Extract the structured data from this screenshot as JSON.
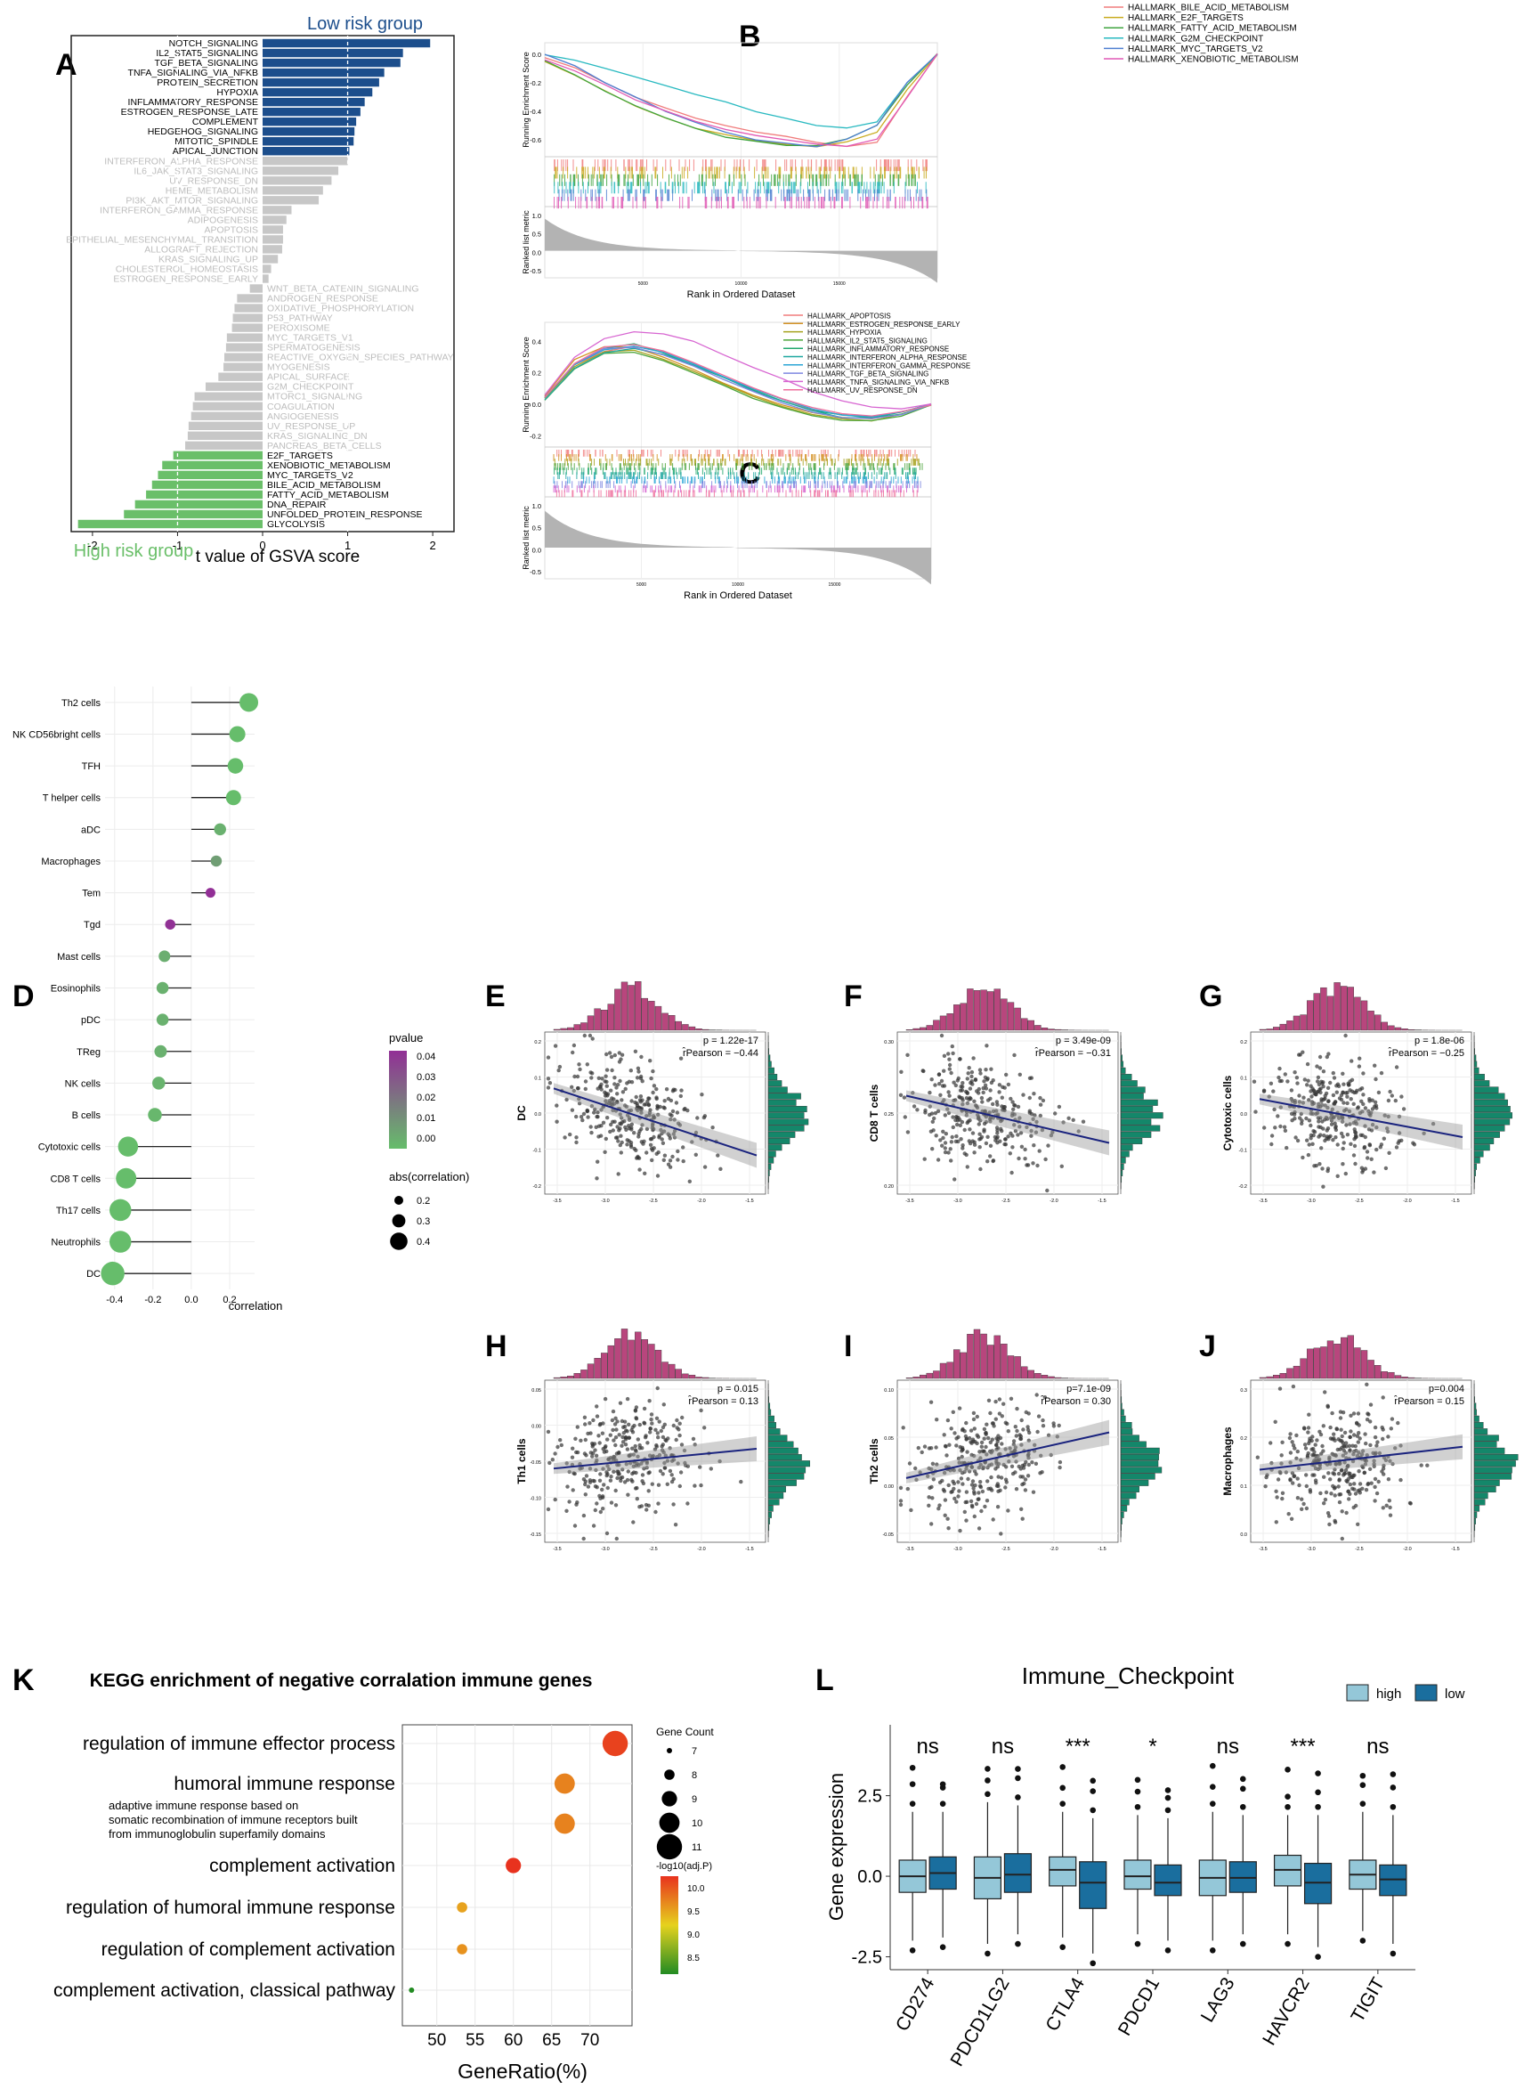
{
  "panels": {
    "A": "A",
    "B": "B",
    "C": "C",
    "D": "D",
    "E": "E",
    "F": "F",
    "G": "G",
    "H": "H",
    "I": "I",
    "J": "J",
    "K": "K",
    "L": "L"
  },
  "colors": {
    "low": "#1c4e8c",
    "high": "#6abf69",
    "grey": "#c7c7c7",
    "greyText": "#bdbdbd",
    "magenta": "#b8467d",
    "teal": "#14876a",
    "lightblue": "#94c7d8",
    "darkblue": "#1a6e9e"
  },
  "chart_data": [
    {
      "type": "bar",
      "panel": "A",
      "title_low": "Low risk group",
      "title_high": "High risk group",
      "xlabel": "t value of GSVA score",
      "xlim": [
        -2.25,
        2.25
      ],
      "xticks": [
        "-2",
        "-1",
        "0",
        "1",
        "2"
      ],
      "categories": [
        "NOTCH_SIGNALING",
        "IL2_STAT5_SIGNALING",
        "TGF_BETA_SIGNALING",
        "TNFA_SIGNALING_VIA_NFKB",
        "PROTEIN_SECRETION",
        "HYPOXIA",
        "INFLAMMATORY_RESPONSE",
        "ESTROGEN_RESPONSE_LATE",
        "COMPLEMENT",
        "HEDGEHOG_SIGNALING",
        "MITOTIC_SPINDLE",
        "APICAL_JUNCTION",
        "INTERFERON_ALPHA_RESPONSE",
        "IL6_JAK_STAT3_SIGNALING",
        "UV_RESPONSE_DN",
        "HEME_METABOLISM",
        "PI3K_AKT_MTOR_SIGNALING",
        "INTERFERON_GAMMA_RESPONSE",
        "ADIPOGENESIS",
        "APOPTOSIS",
        "EPITHELIAL_MESENCHYMAL_TRANSITION",
        "ALLOGRAFT_REJECTION",
        "KRAS_SIGNALING_UP",
        "CHOLESTEROL_HOMEOSTASIS",
        "ESTROGEN_RESPONSE_EARLY",
        "WNT_BETA_CATENIN_SIGNALING",
        "ANDROGEN_RESPONSE",
        "OXIDATIVE_PHOSPHORYLATION",
        "P53_PATHWAY",
        "PEROXISOME",
        "MYC_TARGETS_V1",
        "SPERMATOGENESIS",
        "REACTIVE_OXYGEN_SPECIES_PATHWAY",
        "MYOGENESIS",
        "APICAL_SURFACE",
        "G2M_CHECKPOINT",
        "MTORC1_SIGNALING",
        "COAGULATION",
        "ANGIOGENESIS",
        "UV_RESPONSE_UP",
        "KRAS_SIGNALING_DN",
        "PANCREAS_BETA_CELLS",
        "E2F_TARGETS",
        "XENOBIOTIC_METABOLISM",
        "MYC_TARGETS_V2",
        "BILE_ACID_METABOLISM",
        "FATTY_ACID_METABOLISM",
        "DNA_REPAIR",
        "UNFOLDED_PROTEIN_RESPONSE",
        "GLYCOLYSIS"
      ],
      "values": [
        1.97,
        1.65,
        1.62,
        1.43,
        1.37,
        1.29,
        1.2,
        1.15,
        1.1,
        1.08,
        1.07,
        1.02,
        1.0,
        0.89,
        0.81,
        0.71,
        0.66,
        0.34,
        0.28,
        0.24,
        0.24,
        0.23,
        0.18,
        0.1,
        0.07,
        -0.15,
        -0.3,
        -0.33,
        -0.35,
        -0.36,
        -0.42,
        -0.43,
        -0.45,
        -0.46,
        -0.52,
        -0.67,
        -0.8,
        -0.82,
        -0.84,
        -0.87,
        -0.88,
        -0.91,
        -1.05,
        -1.18,
        -1.23,
        -1.3,
        -1.37,
        -1.5,
        -1.63,
        -2.17
      ],
      "group": [
        "low",
        "low",
        "low",
        "low",
        "low",
        "low",
        "low",
        "low",
        "low",
        "low",
        "low",
        "low",
        "ns",
        "ns",
        "ns",
        "ns",
        "ns",
        "ns",
        "ns",
        "ns",
        "ns",
        "ns",
        "ns",
        "ns",
        "ns",
        "ns",
        "ns",
        "ns",
        "ns",
        "ns",
        "ns",
        "ns",
        "ns",
        "ns",
        "ns",
        "ns",
        "ns",
        "ns",
        "ns",
        "ns",
        "ns",
        "ns",
        "high",
        "high",
        "high",
        "high",
        "high",
        "high",
        "high",
        "high"
      ]
    },
    {
      "type": "line",
      "panel": "B",
      "ylabel": "Running Enrichment Score",
      "ylabel2": "Ranked list metric",
      "xlabel": "Rank in Ordered Dataset",
      "yticks": [
        "0.0",
        "-0.2",
        "-0.4",
        "-0.6"
      ],
      "yticks2": [
        "1.0",
        "0.5",
        "0.0",
        "-0.5"
      ],
      "xticks": [
        "5000",
        "10000",
        "15000"
      ],
      "series": [
        {
          "name": "HALLMARK_BILE_ACID_METABOLISM",
          "color": "#f07b7b",
          "values": [
            -0.02,
            -0.1,
            -0.2,
            -0.3,
            -0.38,
            -0.45,
            -0.5,
            -0.55,
            -0.58,
            -0.62,
            -0.65,
            -0.62,
            -0.3,
            0.0
          ]
        },
        {
          "name": "HALLMARK_E2F_TARGETS",
          "color": "#c9ab1f",
          "values": [
            -0.05,
            -0.15,
            -0.26,
            -0.36,
            -0.45,
            -0.52,
            -0.57,
            -0.61,
            -0.63,
            -0.65,
            -0.62,
            -0.55,
            -0.25,
            0.0
          ]
        },
        {
          "name": "HALLMARK_FATTY_ACID_METABOLISM",
          "color": "#3fa43f",
          "values": [
            -0.05,
            -0.15,
            -0.26,
            -0.36,
            -0.45,
            -0.52,
            -0.58,
            -0.61,
            -0.64,
            -0.64,
            -0.6,
            -0.5,
            -0.22,
            0.0
          ]
        },
        {
          "name": "HALLMARK_G2M_CHECKPOINT",
          "color": "#28b9c0",
          "values": [
            0.0,
            -0.04,
            -0.1,
            -0.16,
            -0.22,
            -0.28,
            -0.34,
            -0.4,
            -0.45,
            -0.5,
            -0.52,
            -0.48,
            -0.2,
            0.0
          ]
        },
        {
          "name": "HALLMARK_MYC_TARGETS_V2",
          "color": "#4f7fd1",
          "values": [
            0.0,
            -0.08,
            -0.2,
            -0.3,
            -0.4,
            -0.48,
            -0.55,
            -0.6,
            -0.63,
            -0.65,
            -0.6,
            -0.5,
            -0.2,
            0.0
          ]
        },
        {
          "name": "HALLMARK_XENOBIOTIC_METABOLISM",
          "color": "#e159b5",
          "values": [
            -0.04,
            -0.12,
            -0.22,
            -0.32,
            -0.4,
            -0.47,
            -0.53,
            -0.57,
            -0.6,
            -0.63,
            -0.65,
            -0.6,
            -0.3,
            0.0
          ]
        }
      ]
    },
    {
      "type": "line",
      "panel": "C",
      "ylabel": "Running Enrichment Score",
      "ylabel2": "Ranked list metric",
      "xlabel": "Rank in Ordered Dataset",
      "yticks": [
        "0.4",
        "0.2",
        "0.0",
        "-0.2"
      ],
      "yticks2": [
        "1.0",
        "0.5",
        "0.0",
        "-0.5"
      ],
      "xticks": [
        "5000",
        "10000",
        "15000"
      ],
      "series": [
        {
          "name": "HALLMARK_APOPTOSIS",
          "color": "#f07b7b",
          "values": [
            0.05,
            0.25,
            0.34,
            0.37,
            0.33,
            0.26,
            0.18,
            0.1,
            0.03,
            -0.03,
            -0.07,
            -0.08,
            -0.05,
            0.0
          ]
        },
        {
          "name": "HALLMARK_ESTROGEN_RESPONSE_EARLY",
          "color": "#d49225",
          "values": [
            0.05,
            0.28,
            0.37,
            0.36,
            0.3,
            0.22,
            0.14,
            0.06,
            0.0,
            -0.05,
            -0.08,
            -0.09,
            -0.06,
            0.0
          ]
        },
        {
          "name": "HALLMARK_HYPOXIA",
          "color": "#a6a21e",
          "values": [
            0.04,
            0.24,
            0.33,
            0.34,
            0.29,
            0.21,
            0.13,
            0.05,
            -0.01,
            -0.06,
            -0.09,
            -0.1,
            -0.06,
            0.0
          ]
        },
        {
          "name": "HALLMARK_IL2_STAT5_SIGNALING",
          "color": "#4ca43a",
          "values": [
            0.03,
            0.22,
            0.32,
            0.33,
            0.28,
            0.2,
            0.12,
            0.04,
            -0.02,
            -0.07,
            -0.1,
            -0.1,
            -0.07,
            0.0
          ]
        },
        {
          "name": "HALLMARK_INFLAMMATORY_RESPONSE",
          "color": "#23a86e",
          "values": [
            0.04,
            0.25,
            0.36,
            0.38,
            0.33,
            0.25,
            0.17,
            0.09,
            0.02,
            -0.04,
            -0.07,
            -0.08,
            -0.06,
            0.0
          ]
        },
        {
          "name": "HALLMARK_INTERFERON_ALPHA_RESPONSE",
          "color": "#1fa7a0",
          "values": [
            0.03,
            0.23,
            0.33,
            0.36,
            0.32,
            0.25,
            0.17,
            0.09,
            0.02,
            -0.04,
            -0.08,
            -0.09,
            -0.05,
            0.0
          ]
        },
        {
          "name": "HALLMARK_INTERFERON_GAMMA_RESPONSE",
          "color": "#2aa5d6",
          "values": [
            0.04,
            0.25,
            0.35,
            0.37,
            0.33,
            0.26,
            0.18,
            0.1,
            0.03,
            -0.03,
            -0.07,
            -0.08,
            -0.05,
            0.0
          ]
        },
        {
          "name": "HALLMARK_TGF_BETA_SIGNALING",
          "color": "#7d86e0",
          "values": [
            0.05,
            0.26,
            0.35,
            0.36,
            0.31,
            0.24,
            0.16,
            0.08,
            0.01,
            -0.05,
            -0.08,
            -0.09,
            -0.06,
            0.0
          ]
        },
        {
          "name": "HALLMARK_TNFA_SIGNALING_VIA_NFKB",
          "color": "#d765d1",
          "values": [
            0.06,
            0.3,
            0.42,
            0.46,
            0.45,
            0.4,
            0.32,
            0.24,
            0.16,
            0.08,
            0.02,
            -0.02,
            -0.03,
            0.0
          ]
        },
        {
          "name": "HALLMARK_UV_RESPONSE_DN",
          "color": "#ef6f9d",
          "values": [
            0.04,
            0.26,
            0.36,
            0.38,
            0.34,
            0.27,
            0.19,
            0.11,
            0.04,
            -0.02,
            -0.06,
            -0.07,
            -0.04,
            0.0
          ]
        }
      ]
    },
    {
      "type": "scatter",
      "panel": "D",
      "xlabel": "correlation",
      "xticks": [
        "-0.4",
        "-0.2",
        "0.0",
        "0.2"
      ],
      "xlim": [
        -0.45,
        0.33
      ],
      "legend_pvalue_title": "pvalue",
      "legend_pvalue_ticks": [
        "0.04",
        "0.03",
        "0.02",
        "0.01",
        "0.00"
      ],
      "legend_size_title": "abs(correlation)",
      "legend_size_ticks": [
        "0.2",
        "0.3",
        "0.4"
      ],
      "categories": [
        "Th2 cells",
        "NK CD56bright cells",
        "TFH",
        "T helper cells",
        "aDC",
        "Macrophages",
        "Tem",
        "Tgd",
        "Mast cells",
        "Eosinophils",
        "pDC",
        "TReg",
        "NK cells",
        "B cells",
        "Cytotoxic cells",
        "CD8 T cells",
        "Th17 cells",
        "Neutrophils",
        "DC"
      ],
      "values": [
        0.3,
        0.24,
        0.23,
        0.22,
        0.15,
        0.13,
        0.1,
        -0.11,
        -0.14,
        -0.15,
        -0.15,
        -0.16,
        -0.17,
        -0.19,
        -0.33,
        -0.34,
        -0.37,
        -0.37,
        -0.41
      ],
      "pvalue": [
        0.0,
        0.0,
        0.0,
        0.0,
        0.004,
        0.01,
        0.046,
        0.045,
        0.005,
        0.004,
        0.004,
        0.004,
        0.003,
        0.002,
        0.0,
        0.0,
        0.0,
        0.0,
        0.0
      ]
    },
    {
      "type": "scatter",
      "panel": "E",
      "ylabel": "DC",
      "p": "p  =  1.22e-17",
      "r": "r̂Pearson  =  −0.44",
      "slope": -0.44,
      "yticks": [
        "0.2",
        "0.1",
        "0.0",
        "-0.1",
        "-0.2"
      ],
      "xticks": [
        "-3.5",
        "-3.0",
        "-2.5",
        "-2.0",
        "-1.5"
      ]
    },
    {
      "type": "scatter",
      "panel": "F",
      "ylabel": "CD8 T cells",
      "p": "p  =  3.49e-09",
      "r": "r̂Pearson  =  −0.31",
      "slope": -0.31,
      "yticks": [
        "0.30",
        "0.25",
        "0.20"
      ],
      "xticks": [
        "-3.5",
        "-3.0",
        "-2.5",
        "-2.0",
        "-1.5"
      ]
    },
    {
      "type": "scatter",
      "panel": "G",
      "ylabel": "Cytotoxic cells",
      "p": "p  =  1.8e-06",
      "r": "r̂Pearson  =  −0.25",
      "slope": -0.25,
      "yticks": [
        "0.2",
        "0.1",
        "0.0",
        "-0.1",
        "-0.2"
      ],
      "xticks": [
        "-3.5",
        "-3.0",
        "-2.5",
        "-2.0",
        "-1.5"
      ]
    },
    {
      "type": "scatter",
      "panel": "H",
      "ylabel": "Th1 cells",
      "p": "p  =  0.015",
      "r": "r̂Pearson  =  0.13",
      "slope": 0.13,
      "yticks": [
        "0.05",
        "0.00",
        "-0.05",
        "-0.10",
        "-0.15"
      ],
      "xticks": [
        "-3.5",
        "-3.0",
        "-2.5",
        "-2.0",
        "-1.5"
      ]
    },
    {
      "type": "scatter",
      "panel": "I",
      "ylabel": "Th2 cells",
      "p": "p=7.1e-09",
      "r": "r̂Pearson  =  0.30",
      "slope": 0.3,
      "yticks": [
        "0.10",
        "0.05",
        "0.00",
        "-0.05"
      ],
      "xticks": [
        "-3.5",
        "-3.0",
        "-2.5",
        "-2.0",
        "-1.5"
      ]
    },
    {
      "type": "scatter",
      "panel": "J",
      "ylabel": "Macrophages",
      "p": "p=0.004",
      "r": "r̂Pearson  =  0.15",
      "slope": 0.15,
      "yticks": [
        "0.3",
        "0.2",
        "0.1",
        "0.0"
      ],
      "xticks": [
        "-3.5",
        "-3.0",
        "-2.5",
        "-2.0",
        "-1.5"
      ]
    },
    {
      "type": "scatter",
      "panel": "K",
      "title": "KEGG enrichment of negative corralation immune genes",
      "xlabel": "GeneRatio(%)",
      "xticks": [
        50,
        55,
        60,
        65,
        70
      ],
      "xlim": [
        45.5,
        75.5
      ],
      "legend_count_title": "Gene Count",
      "legend_count_ticks": [
        "7",
        "8",
        "9",
        "10",
        "11"
      ],
      "legend_p_title": "-log10(adj.P)",
      "legend_p_ticks": [
        "10.0",
        "9.5",
        "9.0",
        "8.5"
      ],
      "categories": [
        [
          "regulation of immune effector process"
        ],
        [
          "humoral immune response"
        ],
        [
          "adaptive immune response based on",
          "somatic recombination of immune receptors built",
          "from immunoglobulin superfamily domains"
        ],
        [
          "complement activation"
        ],
        [
          "regulation of humoral immune response"
        ],
        [
          "regulation of complement activation"
        ],
        [
          "complement activation, classical pathway"
        ]
      ],
      "values": [
        73.3,
        66.7,
        66.7,
        60.0,
        53.3,
        53.3,
        46.7
      ],
      "counts": [
        11,
        10,
        10,
        9,
        8,
        8,
        7
      ],
      "neglogp": [
        10.3,
        9.9,
        9.9,
        10.4,
        9.7,
        9.8,
        8.4
      ]
    },
    {
      "type": "bar",
      "panel": "L",
      "title": "Immune_Checkpoint",
      "ylabel": "Gene expression",
      "yticks": [
        "-2.5",
        "0.0",
        "2.5"
      ],
      "ylim": [
        -2.9,
        4.7
      ],
      "legend_high": "high",
      "legend_low": "low",
      "categories": [
        "CD274",
        "PDCD1LG2",
        "CTLA4",
        "PDCD1",
        "LAG3",
        "HAVCR2",
        "TIGIT"
      ],
      "significance": [
        "ns",
        "ns",
        "***",
        "*",
        "ns",
        "***",
        "ns"
      ],
      "series": [
        {
          "name": "high",
          "q1": [
            -0.5,
            -0.7,
            -0.3,
            -0.4,
            -0.6,
            -0.3,
            -0.4
          ],
          "median": [
            0.0,
            -0.05,
            0.2,
            0.0,
            -0.05,
            0.2,
            0.05
          ],
          "q3": [
            0.5,
            0.6,
            0.6,
            0.5,
            0.5,
            0.65,
            0.5
          ],
          "lo": [
            -2.0,
            -2.1,
            -1.9,
            -1.8,
            -2.0,
            -1.8,
            -1.7
          ],
          "hi": [
            2.0,
            2.3,
            2.0,
            1.9,
            2.0,
            1.9,
            2.0
          ]
        },
        {
          "name": "low",
          "q1": [
            -0.4,
            -0.5,
            -1.0,
            -0.6,
            -0.5,
            -0.85,
            -0.6
          ],
          "median": [
            0.1,
            0.05,
            -0.2,
            -0.2,
            -0.05,
            -0.2,
            -0.1
          ],
          "q3": [
            0.6,
            0.7,
            0.45,
            0.35,
            0.45,
            0.4,
            0.35
          ],
          "lo": [
            -1.9,
            -1.8,
            -2.4,
            -2.0,
            -1.8,
            -2.2,
            -2.1
          ],
          "hi": [
            2.0,
            2.2,
            1.8,
            1.8,
            1.9,
            1.9,
            1.9
          ]
        }
      ]
    }
  ]
}
